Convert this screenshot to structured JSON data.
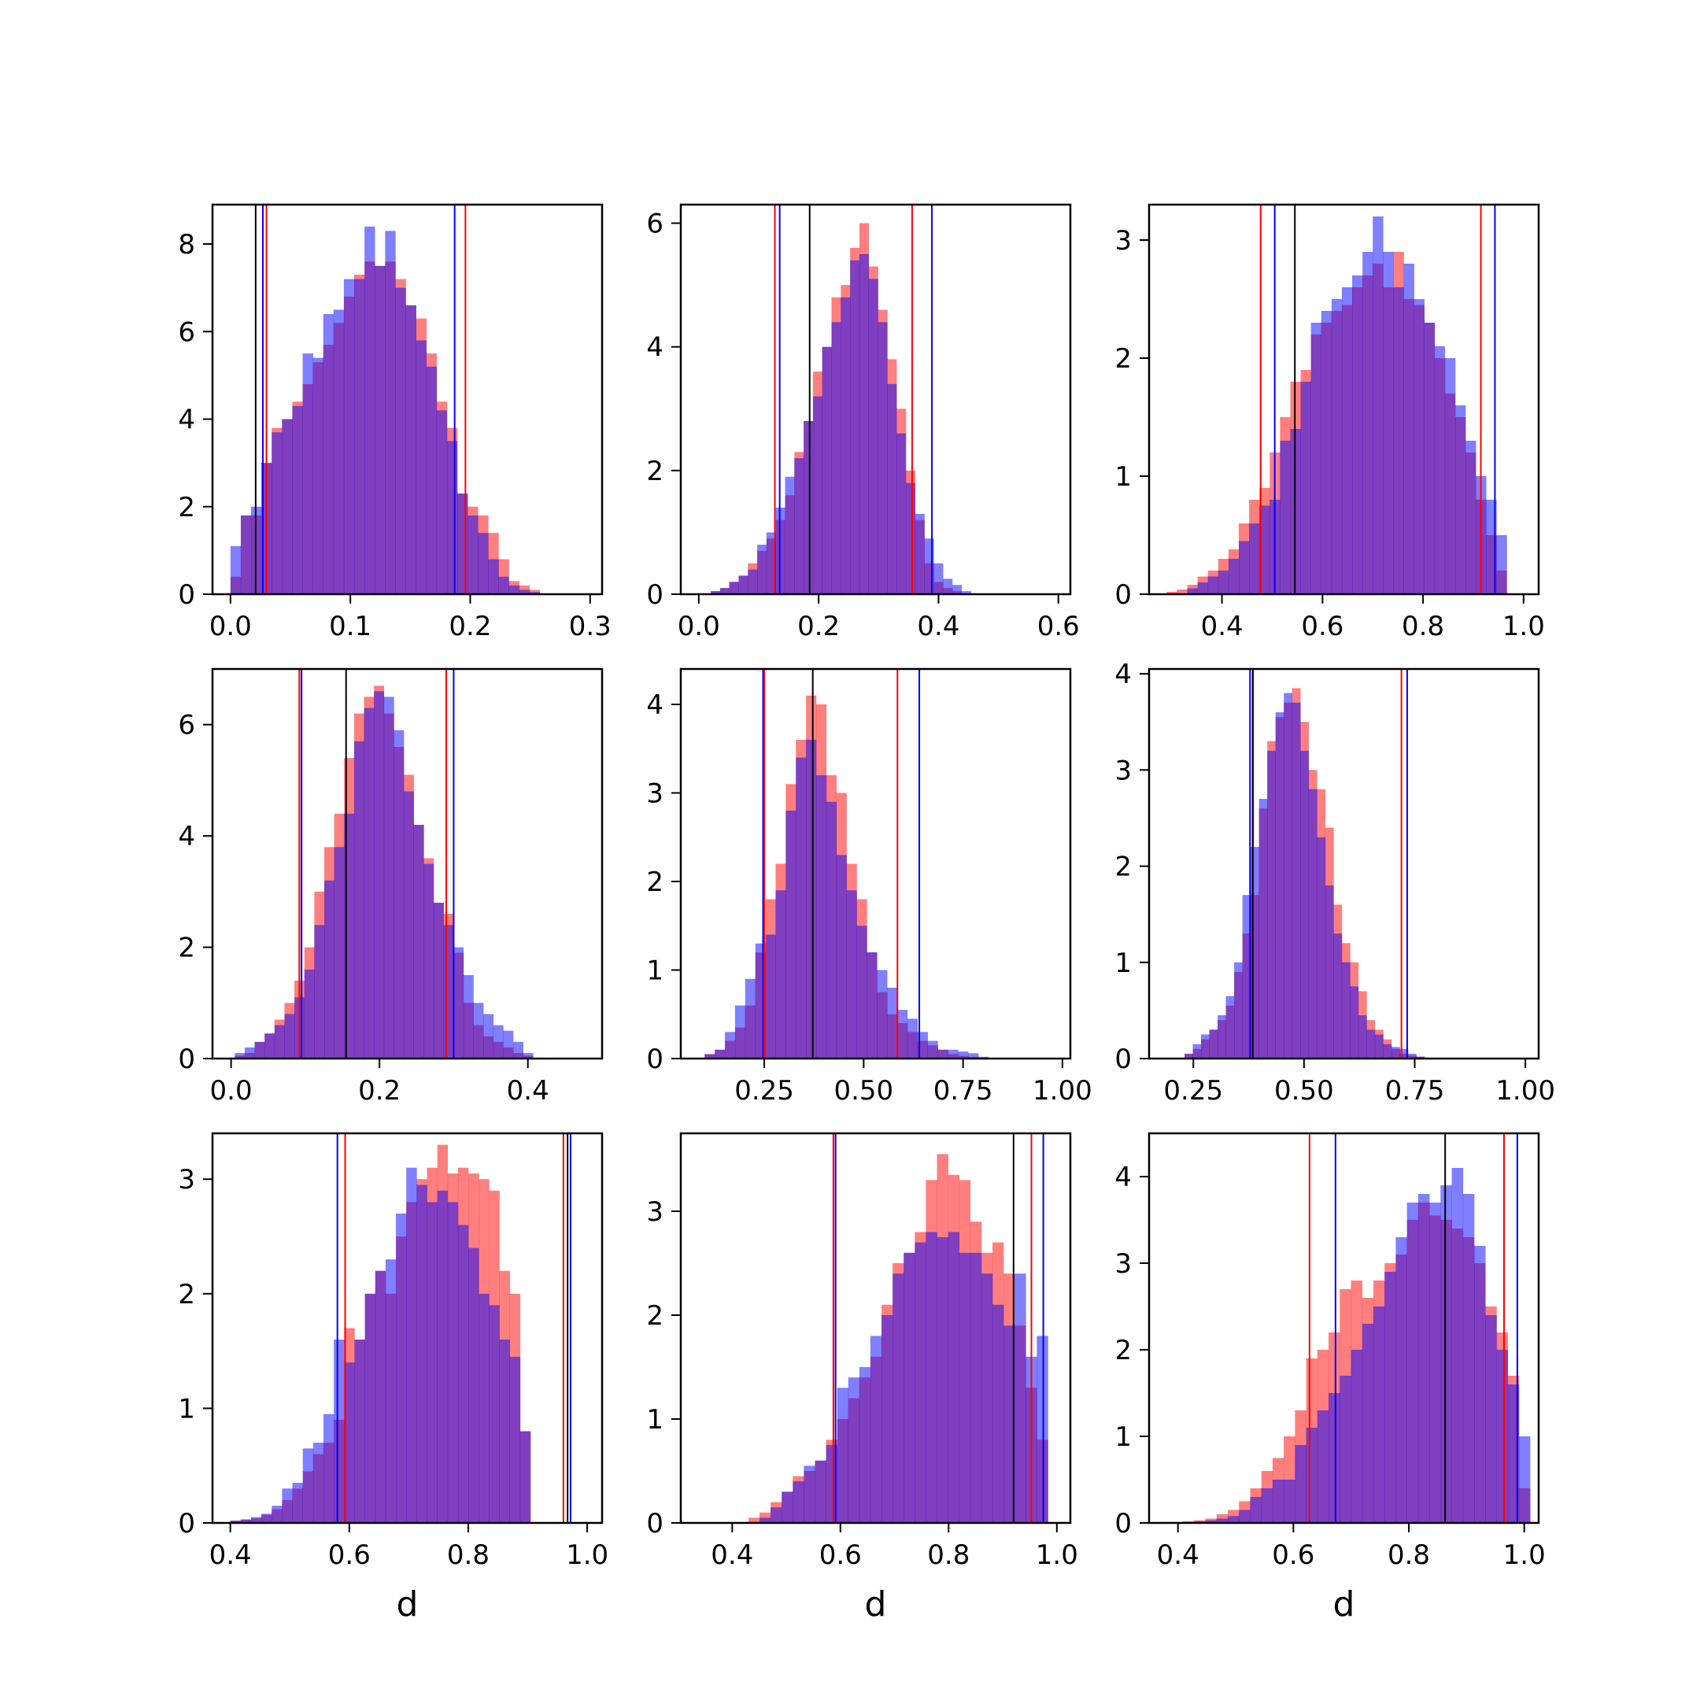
{
  "figure": {
    "colors": {
      "hist_a": "#ff0000",
      "hist_b": "#0000ff",
      "hist_alpha": 0.5,
      "ci_a": "#ff0000",
      "ci_b": "#0000ff",
      "truth": "#000000"
    }
  },
  "chart_data": [
    {
      "type": "histogram",
      "xlabel": "",
      "xlim": [
        -0.015,
        0.31
      ],
      "ylim": [
        0,
        8.9
      ],
      "xticks": [
        0.0,
        0.1,
        0.2,
        0.3
      ],
      "xtick_labels": [
        "0.0",
        "0.1",
        "0.2",
        "0.3"
      ],
      "yticks": [
        0,
        2,
        4,
        6,
        8
      ],
      "ytick_labels": [
        "0",
        "2",
        "4",
        "6",
        "8"
      ],
      "bins": {
        "start": 0.0,
        "width": 0.0086
      },
      "series": [
        {
          "color": "red",
          "values": [
            0.4,
            1.8,
            1.8,
            3.0,
            3.8,
            4.0,
            4.4,
            4.8,
            5.3,
            5.7,
            6.2,
            6.8,
            7.3,
            7.6,
            7.5,
            7.6,
            7.2,
            6.6,
            6.3,
            5.5,
            4.4,
            3.8,
            2.3,
            2.0,
            1.8,
            1.4,
            0.8,
            0.3,
            0.2,
            0.1
          ]
        },
        {
          "color": "blue",
          "values": [
            1.1,
            1.8,
            2.0,
            3.0,
            3.7,
            4.0,
            4.3,
            5.5,
            5.4,
            6.4,
            6.5,
            7.2,
            7.2,
            8.4,
            7.5,
            8.3,
            7.0,
            6.6,
            5.8,
            5.2,
            4.2,
            3.5,
            2.3,
            1.8,
            1.4,
            0.8,
            0.4,
            0.2,
            0.1,
            0.05
          ]
        }
      ],
      "vlines": [
        {
          "x": 0.021,
          "color": "black"
        },
        {
          "x": 0.027,
          "color": "blue"
        },
        {
          "x": 0.03,
          "color": "red"
        },
        {
          "x": 0.187,
          "color": "blue"
        },
        {
          "x": 0.196,
          "color": "red"
        }
      ]
    },
    {
      "type": "histogram",
      "xlabel": "",
      "xlim": [
        -0.03,
        0.62
      ],
      "ylim": [
        0,
        6.3
      ],
      "xticks": [
        0.0,
        0.2,
        0.4,
        0.6
      ],
      "xtick_labels": [
        "0.0",
        "0.2",
        "0.4",
        "0.6"
      ],
      "yticks": [
        0,
        2,
        4,
        6
      ],
      "ytick_labels": [
        "0",
        "2",
        "4",
        "6"
      ],
      "bins": {
        "start": 0.02,
        "width": 0.0155
      },
      "series": [
        {
          "color": "red",
          "values": [
            0.05,
            0.1,
            0.2,
            0.3,
            0.5,
            0.7,
            0.9,
            1.2,
            1.6,
            2.3,
            2.8,
            3.6,
            4.0,
            4.8,
            5.0,
            5.6,
            6.0,
            5.3,
            4.6,
            3.8,
            3.0,
            2.0,
            1.2,
            0.5,
            0.2,
            0.1,
            0.05
          ]
        },
        {
          "color": "blue",
          "values": [
            0.05,
            0.1,
            0.2,
            0.3,
            0.4,
            0.8,
            1.0,
            1.4,
            1.9,
            2.2,
            2.8,
            3.2,
            4.0,
            4.4,
            4.8,
            5.4,
            5.5,
            5.1,
            4.4,
            3.4,
            2.6,
            1.8,
            1.3,
            0.9,
            0.5,
            0.25,
            0.15,
            0.05
          ]
        }
      ],
      "vlines": [
        {
          "x": 0.127,
          "color": "red"
        },
        {
          "x": 0.135,
          "color": "blue"
        },
        {
          "x": 0.185,
          "color": "black"
        },
        {
          "x": 0.356,
          "color": "red"
        },
        {
          "x": 0.389,
          "color": "blue"
        }
      ]
    },
    {
      "type": "histogram",
      "xlabel": "",
      "xlim": [
        0.255,
        1.03
      ],
      "ylim": [
        0,
        3.3
      ],
      "xticks": [
        0.4,
        0.6,
        0.8,
        1.0
      ],
      "xtick_labels": [
        "0.4",
        "0.6",
        "0.8",
        "1.0"
      ],
      "yticks": [
        0,
        1,
        2,
        3
      ],
      "ytick_labels": [
        "0",
        "1",
        "2",
        "3"
      ],
      "bins": {
        "start": 0.29,
        "width": 0.0205
      },
      "series": [
        {
          "color": "red",
          "values": [
            0.02,
            0.04,
            0.08,
            0.15,
            0.2,
            0.3,
            0.38,
            0.6,
            0.8,
            0.9,
            1.2,
            1.5,
            1.8,
            1.9,
            2.2,
            2.3,
            2.4,
            2.45,
            2.6,
            2.7,
            2.8,
            2.6,
            2.9,
            2.5,
            2.45,
            2.3,
            2.0,
            1.7,
            1.5,
            1.2,
            0.8,
            0.5,
            0.2
          ]
        },
        {
          "color": "blue",
          "values": [
            0.0,
            0.0,
            0.05,
            0.1,
            0.15,
            0.2,
            0.3,
            0.45,
            0.6,
            0.75,
            0.8,
            1.3,
            1.4,
            1.8,
            2.3,
            2.4,
            2.5,
            2.6,
            2.7,
            2.9,
            3.2,
            2.9,
            2.6,
            2.8,
            2.5,
            2.3,
            2.1,
            2.0,
            1.6,
            1.3,
            1.0,
            0.8,
            0.5
          ]
        }
      ],
      "vlines": [
        {
          "x": 0.477,
          "color": "red"
        },
        {
          "x": 0.505,
          "color": "blue"
        },
        {
          "x": 0.545,
          "color": "black"
        },
        {
          "x": 0.915,
          "color": "red"
        },
        {
          "x": 0.943,
          "color": "blue"
        }
      ]
    },
    {
      "type": "histogram",
      "xlabel": "",
      "xlim": [
        -0.025,
        0.5
      ],
      "ylim": [
        0,
        7.0
      ],
      "xticks": [
        0.0,
        0.2,
        0.4
      ],
      "xtick_labels": [
        "0.0",
        "0.2",
        "0.4"
      ],
      "yticks": [
        0,
        2,
        4,
        6
      ],
      "ytick_labels": [
        "0",
        "2",
        "4",
        "6"
      ],
      "bins": {
        "start": 0.005,
        "width": 0.0134
      },
      "series": [
        {
          "color": "red",
          "values": [
            0.05,
            0.1,
            0.3,
            0.45,
            0.7,
            1.0,
            1.4,
            2.0,
            3.0,
            3.8,
            4.4,
            5.4,
            6.2,
            6.5,
            6.7,
            6.2,
            5.6,
            5.1,
            4.2,
            3.6,
            2.8,
            2.6,
            1.9,
            1.0,
            0.6,
            0.4,
            0.3,
            0.2,
            0.1,
            0.05
          ]
        },
        {
          "color": "blue",
          "values": [
            0.1,
            0.2,
            0.3,
            0.45,
            0.6,
            0.8,
            1.1,
            1.6,
            2.4,
            3.2,
            3.8,
            4.4,
            5.7,
            6.3,
            6.6,
            6.5,
            5.9,
            4.8,
            4.2,
            3.5,
            2.8,
            2.4,
            2.0,
            1.5,
            1.0,
            0.8,
            0.6,
            0.5,
            0.3,
            0.1
          ]
        }
      ],
      "vlines": [
        {
          "x": 0.092,
          "color": "red"
        },
        {
          "x": 0.095,
          "color": "blue"
        },
        {
          "x": 0.155,
          "color": "black"
        },
        {
          "x": 0.29,
          "color": "red"
        },
        {
          "x": 0.3,
          "color": "blue"
        }
      ]
    },
    {
      "type": "histogram",
      "xlabel": "",
      "xlim": [
        0.04,
        1.02
      ],
      "ylim": [
        0,
        4.4
      ],
      "xticks": [
        0.25,
        0.5,
        0.75,
        1.0
      ],
      "xtick_labels": [
        "0.25",
        "0.50",
        "0.75",
        "1.00"
      ],
      "yticks": [
        0,
        1,
        2,
        3,
        4
      ],
      "ytick_labels": [
        "0",
        "1",
        "2",
        "3",
        "4"
      ],
      "bins": {
        "start": 0.1,
        "width": 0.0255
      },
      "series": [
        {
          "color": "red",
          "values": [
            0.05,
            0.1,
            0.2,
            0.35,
            0.6,
            1.2,
            1.8,
            2.2,
            3.1,
            3.6,
            4.1,
            4.0,
            3.2,
            3.0,
            2.2,
            1.8,
            1.2,
            0.75,
            0.5,
            0.4,
            0.3,
            0.2,
            0.15,
            0.1,
            0.05,
            0.03,
            0.02,
            0.01
          ]
        },
        {
          "color": "blue",
          "values": [
            0.05,
            0.1,
            0.3,
            0.6,
            0.9,
            1.3,
            1.4,
            1.9,
            2.8,
            3.4,
            3.6,
            3.2,
            2.9,
            2.3,
            1.9,
            1.5,
            1.2,
            1.0,
            0.8,
            0.55,
            0.45,
            0.3,
            0.2,
            0.1,
            0.1,
            0.08,
            0.06,
            0.02
          ]
        }
      ],
      "vlines": [
        {
          "x": 0.247,
          "color": "blue"
        },
        {
          "x": 0.25,
          "color": "red"
        },
        {
          "x": 0.372,
          "color": "black"
        },
        {
          "x": 0.585,
          "color": "red"
        },
        {
          "x": 0.64,
          "color": "blue"
        }
      ]
    },
    {
      "type": "histogram",
      "xlabel": "",
      "xlim": [
        0.15,
        1.03
      ],
      "ylim": [
        0,
        4.05
      ],
      "xticks": [
        0.25,
        0.5,
        0.75,
        1.0
      ],
      "xtick_labels": [
        "0.25",
        "0.50",
        "0.75",
        "1.00"
      ],
      "yticks": [
        0,
        1,
        2,
        3,
        4
      ],
      "ytick_labels": [
        "0",
        "1",
        "2",
        "3",
        "4"
      ],
      "bins": {
        "start": 0.23,
        "width": 0.0187
      },
      "series": [
        {
          "color": "red",
          "values": [
            0.05,
            0.1,
            0.2,
            0.3,
            0.4,
            0.55,
            0.9,
            1.3,
            1.7,
            2.6,
            3.3,
            3.55,
            3.7,
            3.85,
            3.5,
            3.0,
            2.8,
            2.4,
            1.6,
            1.2,
            1.0,
            0.7,
            0.4,
            0.3,
            0.2,
            0.1,
            0.05,
            0.03,
            0.02
          ]
        },
        {
          "color": "blue",
          "values": [
            0.05,
            0.15,
            0.25,
            0.3,
            0.45,
            0.65,
            1.0,
            1.7,
            2.2,
            2.7,
            3.2,
            3.6,
            3.8,
            3.7,
            3.2,
            2.8,
            2.3,
            1.8,
            1.3,
            1.0,
            0.75,
            0.45,
            0.3,
            0.25,
            0.15,
            0.12,
            0.1,
            0.05,
            0.02
          ]
        }
      ],
      "vlines": [
        {
          "x": 0.378,
          "color": "blue"
        },
        {
          "x": 0.385,
          "color": "red"
        },
        {
          "x": 0.384,
          "color": "black"
        },
        {
          "x": 0.72,
          "color": "red"
        },
        {
          "x": 0.733,
          "color": "blue"
        }
      ]
    },
    {
      "type": "histogram",
      "xlabel": "d",
      "xlim": [
        0.37,
        1.025
      ],
      "ylim": [
        0,
        3.4
      ],
      "xticks": [
        0.4,
        0.6,
        0.8,
        1.0
      ],
      "xtick_labels": [
        "0.4",
        "0.6",
        "0.8",
        "1.0"
      ],
      "yticks": [
        0,
        1,
        2,
        3
      ],
      "ytick_labels": [
        "0",
        "1",
        "2",
        "3"
      ],
      "bins": {
        "start": 0.4,
        "width": 0.0174
      },
      "series": [
        {
          "color": "red",
          "values": [
            0.02,
            0.03,
            0.04,
            0.07,
            0.12,
            0.2,
            0.3,
            0.45,
            0.6,
            0.7,
            0.9,
            1.7,
            1.6,
            2.0,
            2.2,
            2.0,
            2.5,
            2.8,
            3.0,
            3.1,
            3.3,
            3.05,
            3.1,
            3.05,
            3.0,
            2.9,
            2.2,
            2.0,
            0.8
          ]
        },
        {
          "color": "blue",
          "values": [
            0.02,
            0.03,
            0.05,
            0.08,
            0.15,
            0.3,
            0.35,
            0.65,
            0.7,
            0.95,
            1.6,
            1.4,
            1.6,
            2.0,
            2.2,
            2.3,
            2.7,
            3.1,
            2.95,
            2.8,
            2.9,
            2.8,
            2.6,
            2.4,
            2.0,
            1.9,
            1.6,
            1.45,
            0.8
          ]
        }
      ],
      "vlines": [
        {
          "x": 0.58,
          "color": "blue"
        },
        {
          "x": 0.593,
          "color": "red"
        },
        {
          "x": 0.96,
          "color": "red"
        },
        {
          "x": 0.967,
          "color": "black"
        },
        {
          "x": 0.972,
          "color": "blue"
        }
      ]
    },
    {
      "type": "histogram",
      "xlabel": "d",
      "xlim": [
        0.305,
        1.025
      ],
      "ylim": [
        0,
        3.75
      ],
      "xticks": [
        0.4,
        0.6,
        0.8,
        1.0
      ],
      "xtick_labels": [
        "0.4",
        "0.6",
        "0.8",
        "1.0"
      ],
      "yticks": [
        0,
        1,
        2,
        3
      ],
      "ytick_labels": [
        "0",
        "1",
        "2",
        "3"
      ],
      "bins": {
        "start": 0.43,
        "width": 0.0205
      },
      "series": [
        {
          "color": "red",
          "values": [
            0.05,
            0.1,
            0.2,
            0.3,
            0.45,
            0.5,
            0.6,
            0.8,
            1.0,
            1.2,
            1.4,
            1.6,
            2.1,
            2.5,
            2.6,
            2.8,
            3.3,
            3.55,
            3.35,
            3.3,
            2.9,
            2.6,
            2.7,
            2.4,
            1.9,
            1.3,
            0.8
          ]
        },
        {
          "color": "blue",
          "values": [
            0.0,
            0.05,
            0.15,
            0.3,
            0.4,
            0.55,
            0.6,
            0.75,
            1.3,
            1.4,
            1.5,
            1.8,
            2.0,
            2.4,
            2.6,
            2.7,
            2.8,
            2.75,
            2.8,
            2.6,
            2.6,
            2.4,
            2.1,
            1.9,
            2.4,
            1.6,
            1.8
          ]
        }
      ],
      "vlines": [
        {
          "x": 0.587,
          "color": "red"
        },
        {
          "x": 0.591,
          "color": "blue"
        },
        {
          "x": 0.92,
          "color": "black"
        },
        {
          "x": 0.953,
          "color": "red"
        },
        {
          "x": 0.975,
          "color": "blue"
        }
      ]
    },
    {
      "type": "histogram",
      "xlabel": "d",
      "xlim": [
        0.35,
        1.025
      ],
      "ylim": [
        0,
        4.5
      ],
      "xticks": [
        0.4,
        0.6,
        0.8,
        1.0
      ],
      "xtick_labels": [
        "0.4",
        "0.6",
        "0.8",
        "1.0"
      ],
      "yticks": [
        0,
        1,
        2,
        3,
        4
      ],
      "ytick_labels": [
        "0",
        "1",
        "2",
        "3",
        "4"
      ],
      "bins": {
        "start": 0.37,
        "width": 0.0194
      },
      "series": [
        {
          "color": "red",
          "values": [
            0.01,
            0.01,
            0.02,
            0.03,
            0.05,
            0.1,
            0.15,
            0.25,
            0.4,
            0.6,
            0.75,
            1.0,
            1.3,
            1.9,
            2.0,
            2.2,
            2.7,
            2.8,
            2.6,
            2.8,
            3.0,
            3.1,
            3.5,
            3.7,
            3.55,
            3.5,
            3.4,
            3.3,
            3.0,
            2.5,
            2.2,
            1.7,
            0.4
          ]
        },
        {
          "color": "blue",
          "values": [
            0.0,
            0.0,
            0.01,
            0.02,
            0.03,
            0.05,
            0.08,
            0.15,
            0.3,
            0.4,
            0.5,
            0.5,
            0.9,
            1.1,
            1.3,
            1.5,
            1.7,
            2.0,
            2.3,
            2.5,
            2.9,
            3.3,
            3.7,
            3.8,
            3.7,
            3.9,
            4.1,
            3.8,
            3.2,
            2.4,
            2.0,
            1.6,
            1.0
          ]
        }
      ],
      "vlines": [
        {
          "x": 0.628,
          "color": "red"
        },
        {
          "x": 0.673,
          "color": "blue"
        },
        {
          "x": 0.863,
          "color": "black"
        },
        {
          "x": 0.965,
          "color": "red"
        },
        {
          "x": 0.988,
          "color": "blue"
        }
      ]
    }
  ]
}
